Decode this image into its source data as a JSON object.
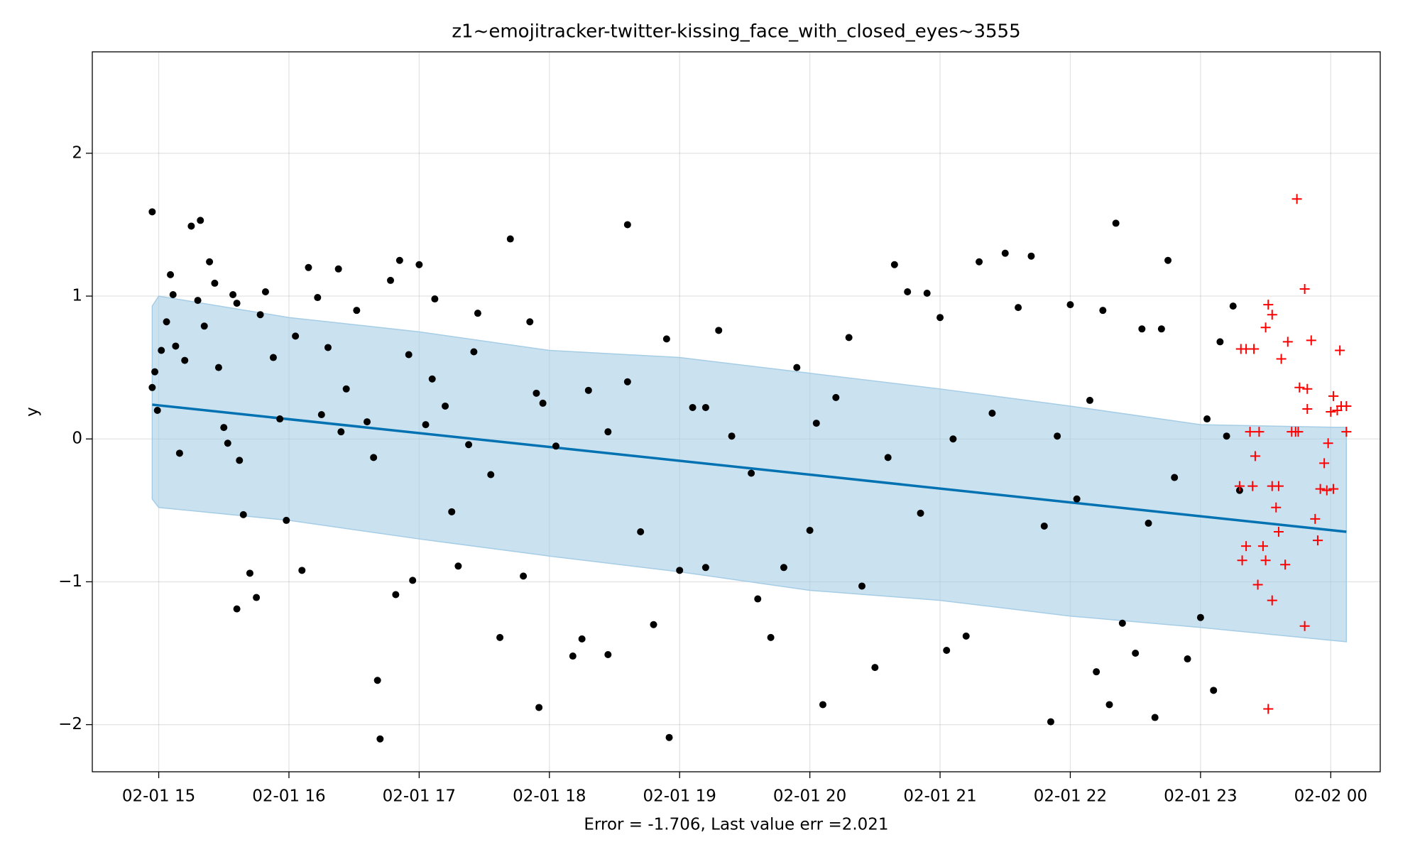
{
  "chart_data": {
    "type": "scatter",
    "title": "z1~emojitracker-twitter-kissing_face_with_closed_eyes~3555",
    "xlabel": "Error = -1.706, Last value err =2.021",
    "ylabel": "y",
    "xlim": [
      14.49,
      24.38
    ],
    "ylim": [
      -2.33,
      2.71
    ],
    "xticks": [
      {
        "value": 15,
        "label": "02-01 15"
      },
      {
        "value": 16,
        "label": "02-01 16"
      },
      {
        "value": 17,
        "label": "02-01 17"
      },
      {
        "value": 18,
        "label": "02-01 18"
      },
      {
        "value": 19,
        "label": "02-01 19"
      },
      {
        "value": 20,
        "label": "02-01 20"
      },
      {
        "value": 21,
        "label": "02-01 21"
      },
      {
        "value": 22,
        "label": "02-01 22"
      },
      {
        "value": 23,
        "label": "02-01 23"
      },
      {
        "value": 24,
        "label": "02-02 00"
      }
    ],
    "yticks": [
      {
        "value": -2,
        "label": "−2"
      },
      {
        "value": -1,
        "label": "−1"
      },
      0,
      1,
      2
    ],
    "grid": true,
    "band": {
      "color": "#a6cde6",
      "x": [
        14.95,
        15.0,
        16,
        17,
        18,
        19,
        20,
        21,
        22,
        23,
        24.12
      ],
      "upper": [
        0.93,
        1.0,
        0.85,
        0.75,
        0.62,
        0.57,
        0.46,
        0.35,
        0.23,
        0.1,
        0.08
      ],
      "lower": [
        -0.42,
        -0.48,
        -0.57,
        -0.7,
        -0.82,
        -0.93,
        -1.06,
        -1.13,
        -1.24,
        -1.32,
        -1.42
      ]
    },
    "trend": {
      "color": "#0072b2",
      "x": [
        14.95,
        24.12
      ],
      "values": [
        0.24,
        -0.65
      ]
    },
    "series": [
      {
        "marker": "dot",
        "color": "#000000",
        "x": [
          14.95,
          14.95,
          14.97,
          14.99,
          15.02,
          15.06,
          15.09,
          15.11,
          15.13,
          15.16,
          15.2,
          15.25,
          15.3,
          15.32,
          15.35,
          15.39,
          15.43,
          15.46,
          15.5,
          15.53,
          15.57,
          15.6,
          15.62,
          15.65,
          15.7,
          15.75,
          15.6,
          15.78,
          15.82,
          15.88,
          15.93,
          15.98,
          16.05,
          16.1,
          16.15,
          16.22,
          16.25,
          16.3,
          16.38,
          16.44,
          16.52,
          16.6,
          16.65,
          16.68,
          16.7,
          16.78,
          16.82,
          16.85,
          16.92,
          16.95,
          17.0,
          17.05,
          17.1,
          17.12,
          17.2,
          17.25,
          17.3,
          17.38,
          17.42,
          17.45,
          17.55,
          17.62,
          17.7,
          17.8,
          17.85,
          17.92,
          17.95,
          18.05,
          18.18,
          18.25,
          18.3,
          18.45,
          18.6,
          18.7,
          18.8,
          18.9,
          18.92,
          19.0,
          19.1,
          19.2,
          19.3,
          19.4,
          19.55,
          19.6,
          19.7,
          19.8,
          19.9,
          20.0,
          20.05,
          20.1,
          20.2,
          20.3,
          20.4,
          20.5,
          20.6,
          20.65,
          20.75,
          20.85,
          20.9,
          21.0,
          21.05,
          21.1,
          21.2,
          21.3,
          21.4,
          21.5,
          21.6,
          21.7,
          21.8,
          21.85,
          21.9,
          22.0,
          22.05,
          22.15,
          22.2,
          22.25,
          22.3,
          22.35,
          22.4,
          22.5,
          22.6,
          22.65,
          22.75,
          22.8,
          22.9,
          23.0,
          23.05,
          23.1,
          23.15,
          23.2,
          23.25,
          23.3,
          22.55,
          22.7,
          18.6,
          19.2,
          16.4,
          17.9,
          18.45
        ],
        "values": [
          1.59,
          0.36,
          0.47,
          0.2,
          0.62,
          0.82,
          1.15,
          1.01,
          0.65,
          -0.1,
          0.55,
          1.49,
          0.97,
          1.53,
          0.79,
          1.24,
          1.09,
          0.5,
          0.08,
          -0.03,
          1.01,
          0.95,
          -0.15,
          -0.53,
          -0.94,
          -1.11,
          -1.19,
          0.87,
          1.03,
          0.57,
          0.14,
          -0.57,
          0.72,
          -0.92,
          1.2,
          0.99,
          0.17,
          0.64,
          1.19,
          0.35,
          0.9,
          0.12,
          -0.13,
          -1.69,
          -2.1,
          1.11,
          -1.09,
          1.25,
          0.59,
          -0.99,
          1.22,
          0.1,
          0.42,
          0.98,
          0.23,
          -0.51,
          -0.89,
          -0.04,
          0.61,
          0.88,
          -0.25,
          -1.39,
          1.4,
          -0.96,
          0.82,
          -1.88,
          0.25,
          -0.05,
          -1.52,
          -1.4,
          0.34,
          -1.51,
          1.5,
          -0.65,
          -1.3,
          0.7,
          -2.09,
          -0.92,
          0.22,
          -0.9,
          0.76,
          0.02,
          -0.24,
          -1.12,
          -1.39,
          -0.9,
          0.5,
          -0.64,
          0.11,
          -1.86,
          0.29,
          0.71,
          -1.03,
          -1.6,
          -0.13,
          1.22,
          1.03,
          -0.52,
          1.02,
          0.85,
          -1.48,
          0.0,
          -1.38,
          1.24,
          0.18,
          1.3,
          0.92,
          1.28,
          -0.61,
          -1.98,
          0.02,
          0.94,
          -0.42,
          0.27,
          -1.63,
          0.9,
          -1.86,
          1.51,
          -1.29,
          -1.5,
          -0.59,
          -1.95,
          1.25,
          -0.27,
          -1.54,
          -1.25,
          0.14,
          -1.76,
          0.68,
          0.02,
          0.93,
          -0.36,
          0.77,
          0.77,
          0.4,
          0.22,
          0.05,
          0.32,
          0.05
        ]
      },
      {
        "marker": "plus",
        "color": "#ff0000",
        "x": [
          23.31,
          23.35,
          23.41,
          23.38,
          23.42,
          23.45,
          23.3,
          23.4,
          23.32,
          23.35,
          23.48,
          23.44,
          23.5,
          23.52,
          23.55,
          23.5,
          23.55,
          23.6,
          23.58,
          23.6,
          23.62,
          23.65,
          23.55,
          23.52,
          23.67,
          23.7,
          23.73,
          23.75,
          23.74,
          23.76,
          23.8,
          23.82,
          23.82,
          23.85,
          23.88,
          23.9,
          23.92,
          23.95,
          23.97,
          24.0,
          24.02,
          24.05,
          24.07,
          24.08,
          24.12,
          24.12,
          23.98,
          24.02,
          23.8
        ],
        "values": [
          0.63,
          0.63,
          0.63,
          0.05,
          -0.12,
          0.05,
          -0.33,
          -0.33,
          -0.85,
          -0.75,
          -0.75,
          -1.02,
          -0.85,
          0.94,
          0.87,
          0.78,
          -0.33,
          -0.33,
          -0.48,
          -0.65,
          0.56,
          -0.88,
          -1.13,
          -1.89,
          0.68,
          0.05,
          0.05,
          0.05,
          1.68,
          0.36,
          1.05,
          0.35,
          0.21,
          0.69,
          -0.56,
          -0.71,
          -0.35,
          -0.17,
          -0.36,
          0.19,
          0.3,
          0.2,
          0.62,
          0.23,
          0.23,
          0.05,
          -0.03,
          -0.35,
          -1.31
        ]
      }
    ]
  }
}
